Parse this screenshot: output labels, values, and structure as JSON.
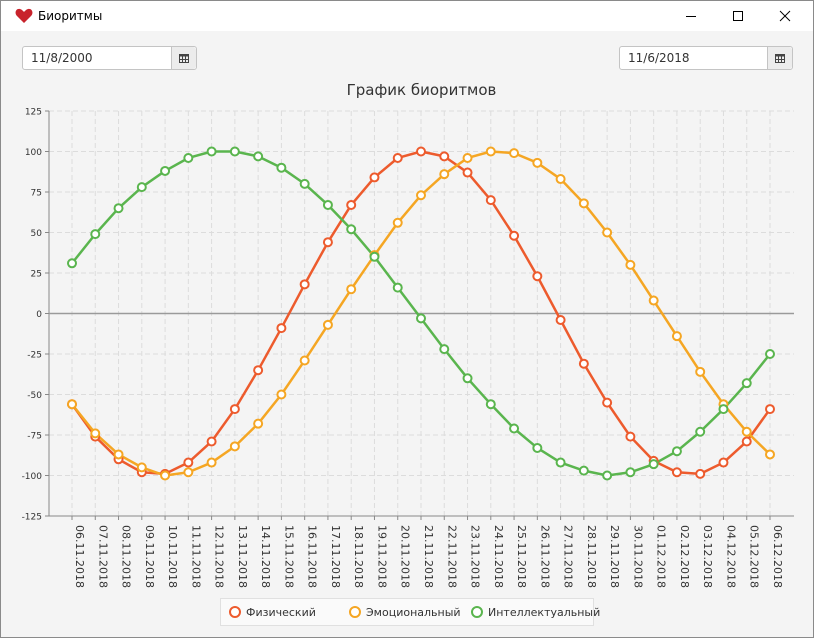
{
  "window": {
    "title": "Биоритмы",
    "icon": "heart-icon",
    "controls": [
      "minimize-icon",
      "maximize-icon",
      "close-icon"
    ]
  },
  "toolbar": {
    "birth_date": "11/8/2000",
    "target_date": "11/6/2018",
    "calendar_icon": "calendar-icon"
  },
  "colors": {
    "physical": "#ed5b2d",
    "emotional": "#f5a623",
    "intellectual": "#5ab54e",
    "zero_line": "#9a9a9a",
    "grid": "#dcdcdc"
  },
  "chart_data": {
    "type": "line",
    "title": "График биоритмов",
    "xlabel": "",
    "ylabel": "",
    "ylim": [
      -125,
      125
    ],
    "yticks": [
      125,
      100,
      75,
      50,
      25,
      0,
      -25,
      -50,
      -75,
      -100,
      -125
    ],
    "grid": true,
    "legend_position": "bottom",
    "categories": [
      "06.11.2018",
      "07.11.2018",
      "08.11.2018",
      "09.11.2018",
      "10.11.2018",
      "11.11.2018",
      "12.11.2018",
      "13.11.2018",
      "14.11.2018",
      "15.11.2018",
      "16.11.2018",
      "17.11.2018",
      "18.11.2018",
      "19.11.2018",
      "20.11.2018",
      "21.11.2018",
      "22.11.2018",
      "23.11.2018",
      "24.11.2018",
      "25.11.2018",
      "26.11.2018",
      "27.11.2018",
      "28.11.2018",
      "29.11.2018",
      "30.11.2018",
      "01.12.2018",
      "02.12.2018",
      "03.12.2018",
      "04.12.2018",
      "05.12.2018",
      "06.12.2018"
    ],
    "series": [
      {
        "name": "Физический",
        "values": [
          -56,
          -76,
          -90,
          -98,
          -99,
          -92,
          -79,
          -59,
          -35,
          -9,
          18,
          44,
          67,
          84,
          96,
          100,
          97,
          87,
          70,
          48,
          23,
          -4,
          -31,
          -55,
          -76,
          -91,
          -98,
          -99,
          -92,
          -79,
          -59
        ]
      },
      {
        "name": "Эмоциональный",
        "values": [
          -56,
          -74,
          -87,
          -95,
          -100,
          -98,
          -92,
          -82,
          -68,
          -50,
          -29,
          -7,
          15,
          36,
          56,
          73,
          86,
          96,
          100,
          99,
          93,
          83,
          68,
          50,
          30,
          8,
          -14,
          -36,
          -56,
          -73,
          -87
        ]
      },
      {
        "name": "Интеллектуальный",
        "values": [
          31,
          49,
          65,
          78,
          88,
          96,
          100,
          100,
          97,
          90,
          80,
          67,
          52,
          35,
          16,
          -3,
          -22,
          -40,
          -56,
          -71,
          -83,
          -92,
          -97,
          -100,
          -98,
          -93,
          -85,
          -73,
          -59,
          -43,
          -25
        ]
      }
    ]
  }
}
